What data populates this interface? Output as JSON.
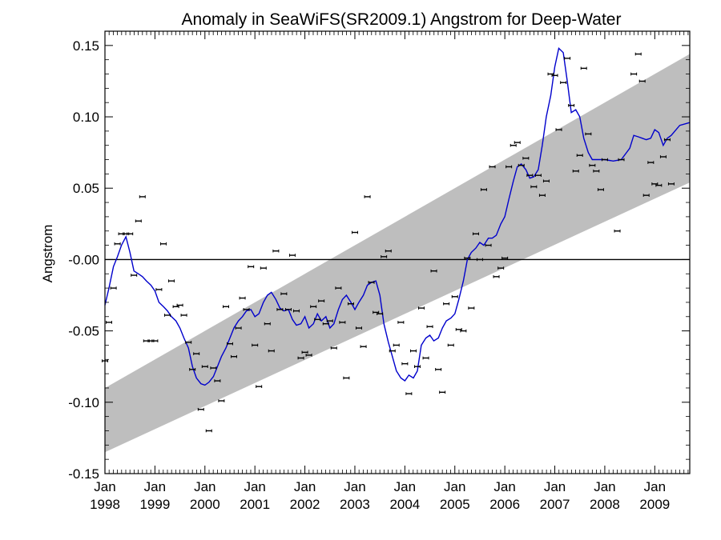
{
  "chart_data": {
    "type": "scatter",
    "title": "Anomaly in SeaWiFS(SR2009.1) Angstrom for Deep-Water",
    "xlabel": "",
    "ylabel": "Angstrom",
    "xlim": [
      1998.0,
      2009.7
    ],
    "ylim": [
      -0.15,
      0.16
    ],
    "y_ticks": [
      {
        "value": 0.15,
        "label": "0.15"
      },
      {
        "value": 0.1,
        "label": "0.10"
      },
      {
        "value": 0.05,
        "label": "0.05"
      },
      {
        "value": 0.0,
        "label": "-0.00"
      },
      {
        "value": -0.05,
        "label": "-0.05"
      },
      {
        "value": -0.1,
        "label": "-0.10"
      },
      {
        "value": -0.15,
        "label": "-0.15"
      }
    ],
    "x_ticks": [
      {
        "value": 1998.0,
        "month": "Jan",
        "year": "1998"
      },
      {
        "value": 1999.0,
        "month": "Jan",
        "year": "1999"
      },
      {
        "value": 2000.0,
        "month": "Jan",
        "year": "2000"
      },
      {
        "value": 2001.0,
        "month": "Jan",
        "year": "2001"
      },
      {
        "value": 2002.0,
        "month": "Jan",
        "year": "2002"
      },
      {
        "value": 2003.0,
        "month": "Jan",
        "year": "2003"
      },
      {
        "value": 2004.0,
        "month": "Jan",
        "year": "2004"
      },
      {
        "value": 2005.0,
        "month": "Jan",
        "year": "2005"
      },
      {
        "value": 2006.0,
        "month": "Jan",
        "year": "2006"
      },
      {
        "value": 2007.0,
        "month": "Jan",
        "year": "2007"
      },
      {
        "value": 2008.0,
        "month": "Jan",
        "year": "2008"
      },
      {
        "value": 2009.0,
        "month": "Jan",
        "year": "2009"
      }
    ],
    "zero_line": 0.0,
    "trend_band": {
      "x": [
        1998.0,
        2009.7
      ],
      "lower": [
        -0.135,
        0.054
      ],
      "upper": [
        -0.09,
        0.144
      ],
      "color": "#bebebe"
    },
    "monthly": {
      "color": "#000000",
      "x": [
        1998.0,
        1998.08,
        1998.17,
        1998.25,
        1998.33,
        1998.42,
        1998.5,
        1998.58,
        1998.67,
        1998.75,
        1998.83,
        1998.92,
        1999.0,
        1999.08,
        1999.17,
        1999.25,
        1999.33,
        1999.42,
        1999.5,
        1999.58,
        1999.67,
        1999.75,
        1999.83,
        1999.92,
        2000.0,
        2000.08,
        2000.17,
        2000.25,
        2000.33,
        2000.42,
        2000.5,
        2000.58,
        2000.67,
        2000.75,
        2000.83,
        2000.92,
        2001.0,
        2001.08,
        2001.17,
        2001.25,
        2001.33,
        2001.42,
        2001.5,
        2001.58,
        2001.67,
        2001.75,
        2001.83,
        2001.92,
        2002.0,
        2002.08,
        2002.17,
        2002.25,
        2002.33,
        2002.42,
        2002.5,
        2002.58,
        2002.67,
        2002.75,
        2002.83,
        2002.92,
        2003.0,
        2003.08,
        2003.17,
        2003.25,
        2003.33,
        2003.42,
        2003.5,
        2003.58,
        2003.67,
        2003.75,
        2003.83,
        2003.92,
        2004.0,
        2004.08,
        2004.17,
        2004.25,
        2004.33,
        2004.42,
        2004.5,
        2004.58,
        2004.67,
        2004.75,
        2004.83,
        2004.92,
        2005.0,
        2005.08,
        2005.17,
        2005.25,
        2005.33,
        2005.42,
        2005.5,
        2005.58,
        2005.67,
        2005.75,
        2005.83,
        2005.92,
        2006.0,
        2006.08,
        2006.17,
        2006.25,
        2006.33,
        2006.42,
        2006.5,
        2006.58,
        2006.67,
        2006.75,
        2006.83,
        2006.92,
        2007.0,
        2007.08,
        2007.17,
        2007.25,
        2007.33,
        2007.42,
        2007.5,
        2007.58,
        2007.67,
        2007.75,
        2007.83,
        2007.92,
        2008.0,
        2008.25,
        2008.33,
        2008.58,
        2008.67,
        2008.75,
        2008.83,
        2008.92,
        2009.0,
        2009.08,
        2009.17,
        2009.25,
        2009.33
      ],
      "y": [
        -0.071,
        -0.044,
        -0.02,
        0.011,
        0.018,
        0.018,
        0.018,
        -0.011,
        0.027,
        0.044,
        -0.057,
        -0.057,
        -0.057,
        -0.021,
        0.011,
        -0.039,
        -0.015,
        -0.033,
        -0.032,
        -0.039,
        -0.058,
        -0.077,
        -0.066,
        -0.105,
        -0.075,
        -0.12,
        -0.076,
        -0.085,
        -0.099,
        -0.033,
        -0.059,
        -0.068,
        -0.048,
        -0.027,
        -0.035,
        -0.005,
        -0.06,
        -0.089,
        -0.006,
        -0.045,
        -0.064,
        0.006,
        -0.035,
        -0.024,
        -0.035,
        0.003,
        -0.036,
        -0.069,
        -0.065,
        -0.067,
        -0.033,
        -0.042,
        -0.029,
        -0.045,
        -0.043,
        -0.062,
        -0.02,
        -0.044,
        -0.083,
        -0.031,
        0.019,
        -0.048,
        -0.061,
        0.044,
        -0.016,
        -0.037,
        -0.038,
        0.002,
        0.006,
        -0.064,
        -0.06,
        -0.044,
        -0.073,
        -0.094,
        -0.064,
        -0.075,
        -0.034,
        -0.069,
        -0.047,
        -0.008,
        -0.077,
        -0.093,
        -0.031,
        -0.06,
        -0.026,
        -0.049,
        -0.05,
        0.001,
        -0.034,
        0.018,
        0.0,
        0.049,
        0.01,
        0.065,
        -0.012,
        -0.006,
        0.001,
        0.065,
        0.08,
        0.082,
        0.066,
        0.071,
        0.059,
        0.051,
        0.059,
        0.045,
        0.055,
        0.13,
        0.129,
        0.091,
        0.124,
        0.141,
        0.108,
        0.062,
        0.073,
        0.134,
        0.088,
        0.066,
        0.062,
        0.049,
        0.07,
        0.02,
        0.07,
        0.13,
        0.144,
        0.125,
        0.045,
        0.068,
        0.053,
        0.052,
        0.072,
        0.084,
        0.053
      ]
    },
    "smoothed": {
      "color": "#0000cc",
      "x": [
        1998.0,
        1998.08,
        1998.17,
        1998.25,
        1998.33,
        1998.42,
        1998.5,
        1998.58,
        1998.67,
        1998.75,
        1998.83,
        1998.92,
        1999.0,
        1999.08,
        1999.17,
        1999.25,
        1999.33,
        1999.42,
        1999.5,
        1999.58,
        1999.67,
        1999.75,
        1999.83,
        1999.92,
        2000.0,
        2000.08,
        2000.17,
        2000.25,
        2000.33,
        2000.42,
        2000.5,
        2000.58,
        2000.67,
        2000.75,
        2000.83,
        2000.92,
        2001.0,
        2001.08,
        2001.17,
        2001.25,
        2001.33,
        2001.42,
        2001.5,
        2001.58,
        2001.67,
        2001.75,
        2001.83,
        2001.92,
        2002.0,
        2002.08,
        2002.17,
        2002.25,
        2002.33,
        2002.42,
        2002.5,
        2002.58,
        2002.67,
        2002.75,
        2002.83,
        2002.92,
        2003.0,
        2003.08,
        2003.17,
        2003.25,
        2003.33,
        2003.42,
        2003.5,
        2003.58,
        2003.67,
        2003.75,
        2003.83,
        2003.92,
        2004.0,
        2004.08,
        2004.17,
        2004.25,
        2004.33,
        2004.42,
        2004.5,
        2004.58,
        2004.67,
        2004.75,
        2004.83,
        2004.92,
        2005.0,
        2005.08,
        2005.17,
        2005.25,
        2005.33,
        2005.42,
        2005.5,
        2005.58,
        2005.67,
        2005.75,
        2005.83,
        2005.92,
        2006.0,
        2006.08,
        2006.17,
        2006.25,
        2006.33,
        2006.42,
        2006.5,
        2006.58,
        2006.67,
        2006.75,
        2006.83,
        2006.92,
        2007.0,
        2007.08,
        2007.17,
        2007.25,
        2007.33,
        2007.42,
        2007.5,
        2007.58,
        2007.67,
        2007.75,
        2007.83,
        2007.92,
        2008.0,
        2008.17,
        2008.33,
        2008.5,
        2008.58,
        2008.67,
        2008.75,
        2008.83,
        2008.92,
        2009.0,
        2009.08,
        2009.17,
        2009.25,
        2009.33,
        2009.5,
        2009.7
      ],
      "y": [
        -0.032,
        -0.02,
        -0.005,
        0.002,
        0.01,
        0.016,
        0.005,
        -0.008,
        -0.01,
        -0.012,
        -0.015,
        -0.018,
        -0.022,
        -0.03,
        -0.033,
        -0.036,
        -0.04,
        -0.043,
        -0.048,
        -0.055,
        -0.062,
        -0.075,
        -0.083,
        -0.087,
        -0.088,
        -0.086,
        -0.082,
        -0.075,
        -0.068,
        -0.062,
        -0.055,
        -0.048,
        -0.043,
        -0.04,
        -0.036,
        -0.035,
        -0.04,
        -0.038,
        -0.03,
        -0.025,
        -0.023,
        -0.028,
        -0.034,
        -0.036,
        -0.035,
        -0.042,
        -0.046,
        -0.045,
        -0.04,
        -0.048,
        -0.045,
        -0.038,
        -0.043,
        -0.04,
        -0.048,
        -0.045,
        -0.035,
        -0.028,
        -0.025,
        -0.03,
        -0.035,
        -0.03,
        -0.025,
        -0.018,
        -0.016,
        -0.015,
        -0.025,
        -0.045,
        -0.058,
        -0.068,
        -0.078,
        -0.083,
        -0.085,
        -0.081,
        -0.083,
        -0.078,
        -0.06,
        -0.055,
        -0.053,
        -0.057,
        -0.055,
        -0.048,
        -0.043,
        -0.041,
        -0.038,
        -0.028,
        -0.015,
        0.0,
        0.005,
        0.008,
        0.012,
        0.01,
        0.015,
        0.015,
        0.017,
        0.025,
        0.03,
        0.042,
        0.055,
        0.065,
        0.067,
        0.063,
        0.057,
        0.058,
        0.063,
        0.08,
        0.1,
        0.115,
        0.135,
        0.148,
        0.145,
        0.125,
        0.103,
        0.105,
        0.1,
        0.085,
        0.075,
        0.07,
        0.07,
        0.07,
        0.07,
        0.069,
        0.07,
        0.078,
        0.087,
        0.086,
        0.085,
        0.084,
        0.085,
        0.091,
        0.089,
        0.08,
        0.085,
        0.087,
        0.094,
        0.096
      ]
    }
  }
}
